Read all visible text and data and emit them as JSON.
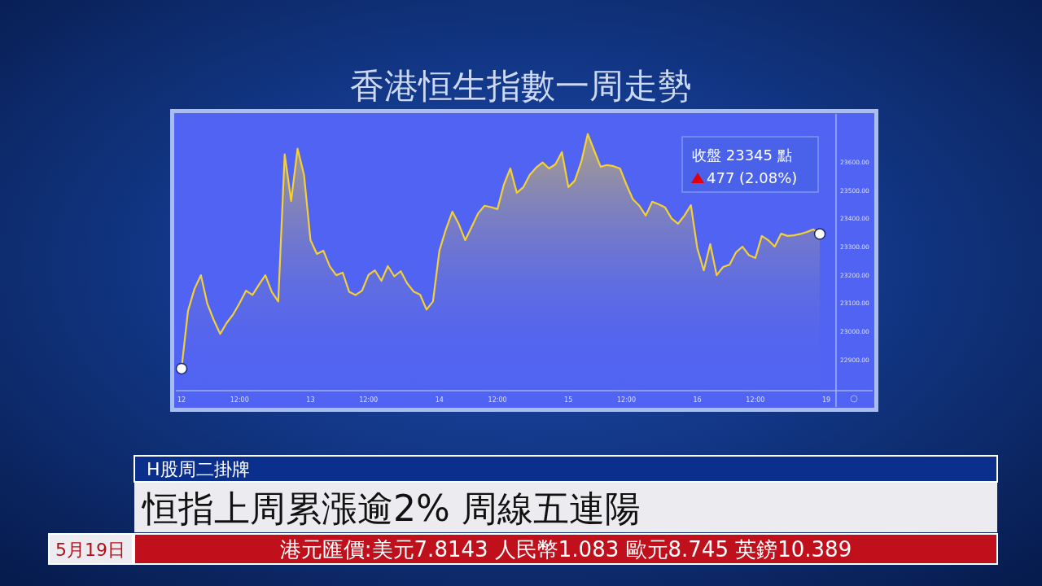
{
  "chart_data": {
    "type": "area",
    "title": "香港恒生指數一周走勢",
    "categories": [
      "12",
      null,
      null,
      null,
      null,
      null,
      null,
      null,
      null,
      "12:00",
      null,
      null,
      null,
      null,
      null,
      null,
      null,
      null,
      null,
      null,
      "13",
      null,
      null,
      null,
      null,
      null,
      null,
      null,
      null,
      "12:00",
      null,
      null,
      null,
      null,
      null,
      null,
      null,
      null,
      null,
      null,
      "14",
      null,
      null,
      null,
      null,
      null,
      null,
      null,
      null,
      "12:00",
      null,
      null,
      null,
      null,
      null,
      null,
      null,
      null,
      null,
      null,
      "15",
      null,
      null,
      null,
      null,
      null,
      null,
      null,
      null,
      "12:00",
      null,
      null,
      null,
      null,
      null,
      null,
      null,
      null,
      null,
      null,
      "16",
      null,
      null,
      null,
      null,
      null,
      null,
      null,
      null,
      "12:00",
      null,
      null,
      null,
      null,
      null,
      null,
      null,
      null,
      null,
      null,
      "19"
    ],
    "ylim": [
      22790,
      23770
    ],
    "yticks": [
      {
        "value": 22900,
        "label": "22900.00"
      },
      {
        "value": 23000,
        "label": "23000.00"
      },
      {
        "value": 23100,
        "label": "23100.00"
      },
      {
        "value": 23200,
        "label": "23200.00"
      },
      {
        "value": 23300,
        "label": "23300.00"
      },
      {
        "value": 23400,
        "label": "23400.00"
      },
      {
        "value": 23500,
        "label": "23500.00"
      },
      {
        "value": 23600,
        "label": "23600.00"
      }
    ],
    "marker": "none",
    "series": [
      {
        "color": "#f5d033",
        "values": [
          22868,
          23072,
          23150,
          23199,
          23098,
          23040,
          22991,
          23030,
          23060,
          23100,
          23144,
          23129,
          23165,
          23199,
          23140,
          23106,
          23627,
          23462,
          23647,
          23554,
          23323,
          23274,
          23286,
          23230,
          23199,
          23208,
          23140,
          23129,
          23144,
          23200,
          23216,
          23179,
          23231,
          23195,
          23213,
          23170,
          23141,
          23130,
          23077,
          23106,
          23286,
          23361,
          23424,
          23380,
          23323,
          23370,
          23418,
          23445,
          23440,
          23433,
          23520,
          23577,
          23491,
          23510,
          23554,
          23580,
          23598,
          23577,
          23592,
          23635,
          23511,
          23534,
          23600,
          23699,
          23641,
          23583,
          23589,
          23585,
          23577,
          23520,
          23468,
          23445,
          23410,
          23459,
          23450,
          23439,
          23400,
          23381,
          23410,
          23447,
          23294,
          23216,
          23309,
          23199,
          23228,
          23236,
          23280,
          23300,
          23270,
          23260,
          23338,
          23323,
          23300,
          23346,
          23338,
          23340,
          23345,
          23352,
          23361,
          23345,
          null
        ]
      },
      {
        "type": "scatter",
        "marker": "circle",
        "color": "#ffffff",
        "values": [
          22868,
          null,
          null,
          null,
          null,
          null,
          null,
          null,
          null,
          null,
          null,
          null,
          null,
          null,
          null,
          null,
          null,
          null,
          null,
          null,
          null,
          null,
          null,
          null,
          null,
          null,
          null,
          null,
          null,
          null,
          null,
          null,
          null,
          null,
          null,
          null,
          null,
          null,
          null,
          null,
          null,
          null,
          null,
          null,
          null,
          null,
          null,
          null,
          null,
          null,
          null,
          null,
          null,
          null,
          null,
          null,
          null,
          null,
          null,
          null,
          null,
          null,
          null,
          null,
          null,
          null,
          null,
          null,
          null,
          null,
          null,
          null,
          null,
          null,
          null,
          null,
          null,
          null,
          null,
          null,
          null,
          null,
          null,
          null,
          null,
          null,
          null,
          null,
          null,
          null,
          null,
          null,
          null,
          null,
          null,
          null,
          null,
          null,
          null,
          23345,
          null
        ]
      }
    ],
    "annotations": [
      "收盤 23345 點",
      "477 (2.08%)",
      "H股周二掛牌",
      "恒指上周累漲逾2% 周線五連陽",
      "5月19日",
      "港元匯價:美元7.8143 人民幣1.083 歐元8.745 英鎊10.389"
    ]
  }
}
